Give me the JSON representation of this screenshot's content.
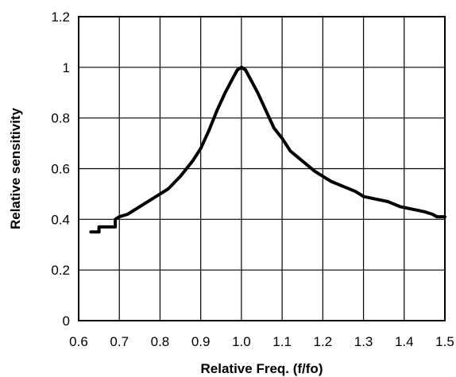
{
  "chart_data": {
    "type": "line",
    "xlabel": "Relative Freq. (f/fo)",
    "ylabel": "Relative sensitivity",
    "xlim": [
      0.6,
      1.5
    ],
    "ylim": [
      0,
      1.2
    ],
    "grid": true,
    "x_ticks": [
      "0.6",
      "0.7",
      "0.8",
      "0.9",
      "1.0",
      "1.1",
      "1.2",
      "1.3",
      "1.4",
      "1.5"
    ],
    "y_ticks": [
      "0",
      "0.2",
      "0.4",
      "0.6",
      "0.8",
      "1",
      "1.2"
    ],
    "series": [
      {
        "x": [
          0.63,
          0.65,
          0.65,
          0.69,
          0.69,
          0.7,
          0.72,
          0.75,
          0.78,
          0.8,
          0.82,
          0.85,
          0.88,
          0.9,
          0.92,
          0.94,
          0.96,
          0.98,
          0.99,
          1.0,
          1.01,
          1.02,
          1.04,
          1.06,
          1.08,
          1.1,
          1.12,
          1.15,
          1.18,
          1.2,
          1.22,
          1.25,
          1.28,
          1.3,
          1.33,
          1.36,
          1.39,
          1.42,
          1.45,
          1.47,
          1.48,
          1.5
        ],
        "y": [
          0.35,
          0.35,
          0.37,
          0.37,
          0.4,
          0.41,
          0.42,
          0.45,
          0.48,
          0.5,
          0.52,
          0.57,
          0.63,
          0.68,
          0.75,
          0.83,
          0.9,
          0.96,
          0.99,
          1.0,
          0.99,
          0.96,
          0.9,
          0.83,
          0.76,
          0.72,
          0.67,
          0.63,
          0.59,
          0.57,
          0.55,
          0.53,
          0.51,
          0.49,
          0.48,
          0.47,
          0.45,
          0.44,
          0.43,
          0.42,
          0.41,
          0.41
        ]
      }
    ]
  }
}
